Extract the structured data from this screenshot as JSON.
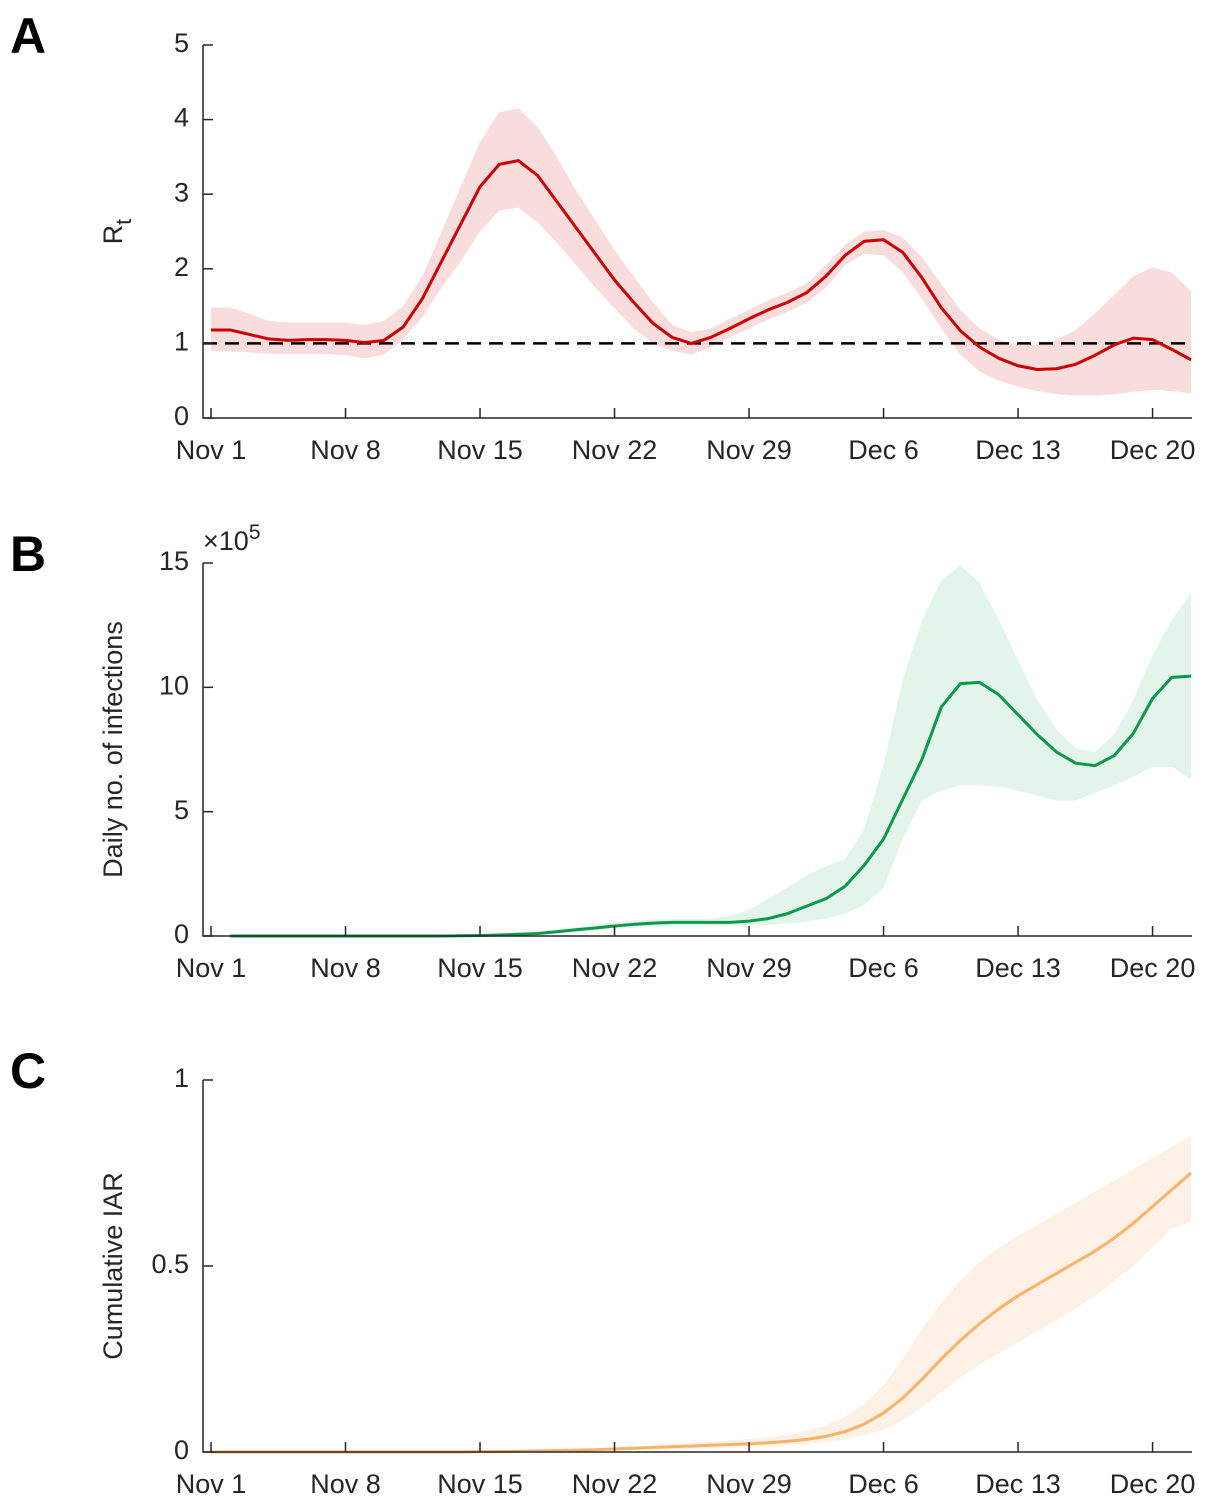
{
  "chart_data": [
    {
      "type": "line",
      "panel": "A",
      "ylabel": "R",
      "ylabel_sub": "t",
      "x": [
        "Nov 1",
        "Nov 2",
        "Nov 3",
        "Nov 4",
        "Nov 5",
        "Nov 6",
        "Nov 7",
        "Nov 8",
        "Nov 9",
        "Nov 10",
        "Nov 11",
        "Nov 12",
        "Nov 13",
        "Nov 14",
        "Nov 15",
        "Nov 16",
        "Nov 17",
        "Nov 18",
        "Nov 19",
        "Nov 20",
        "Nov 21",
        "Nov 22",
        "Nov 23",
        "Nov 24",
        "Nov 25",
        "Nov 26",
        "Nov 27",
        "Nov 28",
        "Nov 29",
        "Nov 30",
        "Dec 1",
        "Dec 2",
        "Dec 3",
        "Dec 4",
        "Dec 5",
        "Dec 6",
        "Dec 7",
        "Dec 8",
        "Dec 9",
        "Dec 10",
        "Dec 11",
        "Dec 12",
        "Dec 13",
        "Dec 14",
        "Dec 15",
        "Dec 16",
        "Dec 17",
        "Dec 18",
        "Dec 19",
        "Dec 20",
        "Dec 21",
        "Dec 22"
      ],
      "values": [
        1.18,
        1.18,
        1.12,
        1.06,
        1.04,
        1.05,
        1.05,
        1.04,
        1.01,
        1.04,
        1.22,
        1.6,
        2.1,
        2.6,
        3.1,
        3.4,
        3.45,
        3.25,
        2.9,
        2.55,
        2.2,
        1.85,
        1.55,
        1.27,
        1.08,
        1.0,
        1.08,
        1.2,
        1.33,
        1.45,
        1.55,
        1.68,
        1.9,
        2.18,
        2.37,
        2.39,
        2.22,
        1.88,
        1.48,
        1.17,
        0.95,
        0.8,
        0.7,
        0.65,
        0.66,
        0.72,
        0.84,
        0.98,
        1.07,
        1.05,
        0.92,
        0.78
      ],
      "lower": [
        0.9,
        0.9,
        0.88,
        0.86,
        0.86,
        0.86,
        0.86,
        0.84,
        0.8,
        0.85,
        1.05,
        1.35,
        1.75,
        2.1,
        2.5,
        2.78,
        2.82,
        2.62,
        2.35,
        2.05,
        1.75,
        1.47,
        1.2,
        1.0,
        0.9,
        0.85,
        0.95,
        1.08,
        1.2,
        1.32,
        1.42,
        1.55,
        1.75,
        2.05,
        2.2,
        2.18,
        1.95,
        1.6,
        1.2,
        0.85,
        0.62,
        0.5,
        0.42,
        0.36,
        0.32,
        0.3,
        0.3,
        0.32,
        0.35,
        0.38,
        0.36,
        0.33
      ],
      "upper": [
        1.48,
        1.48,
        1.4,
        1.3,
        1.28,
        1.28,
        1.28,
        1.28,
        1.25,
        1.3,
        1.5,
        1.9,
        2.5,
        3.1,
        3.7,
        4.1,
        4.15,
        3.9,
        3.5,
        3.05,
        2.65,
        2.25,
        1.9,
        1.55,
        1.25,
        1.15,
        1.2,
        1.33,
        1.45,
        1.58,
        1.68,
        1.8,
        2.05,
        2.32,
        2.5,
        2.52,
        2.42,
        2.15,
        1.8,
        1.45,
        1.2,
        1.05,
        0.98,
        0.98,
        1.05,
        1.18,
        1.4,
        1.65,
        1.9,
        2.02,
        1.95,
        1.7
      ],
      "color": "#cc0000",
      "band_color": "#f9dcdc",
      "hline": 1,
      "ylim": [
        0,
        5
      ],
      "yticks": [
        0,
        1,
        2,
        3,
        4,
        5
      ],
      "xticks": [
        "Nov 1",
        "Nov 8",
        "Nov 15",
        "Nov 22",
        "Nov 29",
        "Dec 6",
        "Dec 13",
        "Dec 20"
      ]
    },
    {
      "type": "line",
      "panel": "B",
      "ylabel": "Daily no. of infections",
      "y_multiplier": {
        "base": "×10",
        "exponent": "5"
      },
      "x": [
        "Nov 1",
        "Nov 2",
        "Nov 3",
        "Nov 4",
        "Nov 5",
        "Nov 6",
        "Nov 7",
        "Nov 8",
        "Nov 9",
        "Nov 10",
        "Nov 11",
        "Nov 12",
        "Nov 13",
        "Nov 14",
        "Nov 15",
        "Nov 16",
        "Nov 17",
        "Nov 18",
        "Nov 19",
        "Nov 20",
        "Nov 21",
        "Nov 22",
        "Nov 23",
        "Nov 24",
        "Nov 25",
        "Nov 26",
        "Nov 27",
        "Nov 28",
        "Nov 29",
        "Nov 30",
        "Dec 1",
        "Dec 2",
        "Dec 3",
        "Dec 4",
        "Dec 5",
        "Dec 6",
        "Dec 7",
        "Dec 8",
        "Dec 9",
        "Dec 10",
        "Dec 11",
        "Dec 12",
        "Dec 13",
        "Dec 14",
        "Dec 15",
        "Dec 16",
        "Dec 17",
        "Dec 18",
        "Dec 19",
        "Dec 20",
        "Dec 21",
        "Dec 22"
      ],
      "values": [
        null,
        0,
        0,
        0,
        0,
        0,
        0,
        0,
        0,
        0,
        0,
        0,
        0,
        0.01,
        0.02,
        0.04,
        0.07,
        0.1,
        0.17,
        0.25,
        0.32,
        0.4,
        0.47,
        0.52,
        0.55,
        0.55,
        0.55,
        0.55,
        0.6,
        0.7,
        0.9,
        1.2,
        1.5,
        2.0,
        2.85,
        3.9,
        5.5,
        7.1,
        9.2,
        10.15,
        10.2,
        9.7,
        8.9,
        8.1,
        7.4,
        6.95,
        6.85,
        7.25,
        8.15,
        9.55,
        10.4,
        10.45
      ],
      "lower": [
        null,
        0,
        0,
        0,
        0,
        0,
        0,
        0,
        0,
        0,
        0,
        0,
        0,
        0,
        0.01,
        0.02,
        0.04,
        0.06,
        0.1,
        0.16,
        0.22,
        0.28,
        0.33,
        0.37,
        0.39,
        0.39,
        0.39,
        0.4,
        0.42,
        0.45,
        0.5,
        0.58,
        0.7,
        0.9,
        1.25,
        1.95,
        3.9,
        5.45,
        5.85,
        6.05,
        6.05,
        6.0,
        5.85,
        5.65,
        5.45,
        5.45,
        5.75,
        6.05,
        6.4,
        6.8,
        6.8,
        6.3
      ],
      "upper": [
        null,
        0,
        0,
        0,
        0,
        0,
        0,
        0,
        0,
        0,
        0,
        0,
        0,
        0.02,
        0.03,
        0.06,
        0.1,
        0.16,
        0.25,
        0.35,
        0.45,
        0.55,
        0.62,
        0.66,
        0.68,
        0.68,
        0.7,
        0.8,
        1.05,
        1.5,
        1.95,
        2.45,
        2.8,
        3.1,
        4.3,
        6.9,
        10.3,
        12.7,
        14.3,
        14.9,
        14.2,
        12.7,
        11.1,
        9.5,
        8.3,
        7.55,
        7.4,
        8.1,
        9.5,
        11.3,
        12.7,
        13.8
      ],
      "color": "#0c9a4a",
      "band_color": "#e3f4ea",
      "ylim": [
        0,
        15
      ],
      "yticks": [
        0,
        5,
        10,
        15
      ],
      "xticks": [
        "Nov 1",
        "Nov 8",
        "Nov 15",
        "Nov 22",
        "Nov 29",
        "Dec 6",
        "Dec 13",
        "Dec 20"
      ]
    },
    {
      "type": "line",
      "panel": "C",
      "ylabel": "Cumulative IAR",
      "x": [
        "Nov 1",
        "Nov 2",
        "Nov 3",
        "Nov 4",
        "Nov 5",
        "Nov 6",
        "Nov 7",
        "Nov 8",
        "Nov 9",
        "Nov 10",
        "Nov 11",
        "Nov 12",
        "Nov 13",
        "Nov 14",
        "Nov 15",
        "Nov 16",
        "Nov 17",
        "Nov 18",
        "Nov 19",
        "Nov 20",
        "Nov 21",
        "Nov 22",
        "Nov 23",
        "Nov 24",
        "Nov 25",
        "Nov 26",
        "Nov 27",
        "Nov 28",
        "Nov 29",
        "Nov 30",
        "Dec 1",
        "Dec 2",
        "Dec 3",
        "Dec 4",
        "Dec 5",
        "Dec 6",
        "Dec 7",
        "Dec 8",
        "Dec 9",
        "Dec 10",
        "Dec 11",
        "Dec 12",
        "Dec 13",
        "Dec 14",
        "Dec 15",
        "Dec 16",
        "Dec 17",
        "Dec 18",
        "Dec 19",
        "Dec 20",
        "Dec 21",
        "Dec 22"
      ],
      "values": [
        0,
        0,
        0,
        0,
        0,
        0,
        0,
        0,
        0,
        0,
        0,
        0,
        0,
        0,
        0.001,
        0.001,
        0.002,
        0.003,
        0.004,
        0.005,
        0.006,
        0.008,
        0.01,
        0.012,
        0.014,
        0.016,
        0.018,
        0.02,
        0.022,
        0.025,
        0.029,
        0.034,
        0.042,
        0.055,
        0.075,
        0.105,
        0.145,
        0.195,
        0.25,
        0.3,
        0.345,
        0.385,
        0.42,
        0.45,
        0.48,
        0.51,
        0.54,
        0.575,
        0.615,
        0.66,
        0.705,
        0.75
      ],
      "lower": [
        0,
        0,
        0,
        0,
        0,
        0,
        0,
        0,
        0,
        0,
        0,
        0,
        0,
        0,
        0,
        0,
        0.001,
        0.002,
        0.002,
        0.003,
        0.004,
        0.005,
        0.006,
        0.007,
        0.008,
        0.009,
        0.01,
        0.012,
        0.014,
        0.016,
        0.019,
        0.022,
        0.027,
        0.034,
        0.045,
        0.06,
        0.085,
        0.12,
        0.16,
        0.2,
        0.235,
        0.265,
        0.295,
        0.325,
        0.355,
        0.385,
        0.42,
        0.46,
        0.5,
        0.55,
        0.6,
        0.62
      ],
      "upper": [
        0,
        0,
        0,
        0,
        0,
        0,
        0,
        0,
        0,
        0,
        0,
        0,
        0,
        0,
        0.001,
        0.002,
        0.003,
        0.004,
        0.006,
        0.008,
        0.01,
        0.012,
        0.015,
        0.018,
        0.021,
        0.024,
        0.027,
        0.031,
        0.035,
        0.04,
        0.047,
        0.057,
        0.072,
        0.095,
        0.13,
        0.18,
        0.25,
        0.33,
        0.4,
        0.46,
        0.51,
        0.55,
        0.58,
        0.61,
        0.64,
        0.67,
        0.7,
        0.73,
        0.76,
        0.79,
        0.82,
        0.85
      ],
      "color": "#f8b26a",
      "band_color": "#fdf0e4",
      "ylim": [
        0,
        1
      ],
      "yticks": [
        0,
        0.5,
        1
      ],
      "xticks": [
        "Nov 1",
        "Nov 8",
        "Nov 15",
        "Nov 22",
        "Nov 29",
        "Dec 6",
        "Dec 13",
        "Dec 20"
      ]
    }
  ]
}
